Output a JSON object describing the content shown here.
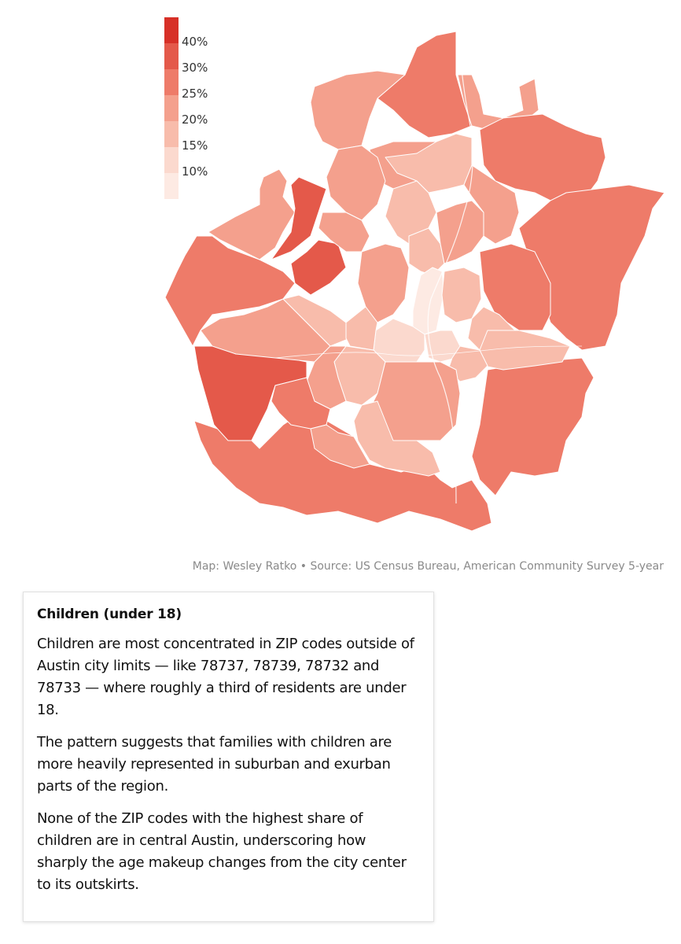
{
  "map": {
    "legend": {
      "labels": [
        "40%",
        "30%",
        "25%",
        "20%",
        "15%",
        "10%"
      ],
      "colors": [
        "#d73027",
        "#e4594a",
        "#ee7b69",
        "#f4a08d",
        "#f8bcab",
        "#fbd9ce",
        "#fdeae3"
      ]
    },
    "palette": {
      "c40": "#d73027",
      "c30": "#e4594a",
      "c25": "#ee7b69",
      "c20": "#f4a08d",
      "c15": "#f8bcab",
      "c10": "#fbd9ce",
      "c05": "#fdeae3",
      "border": "#ffffff"
    }
  },
  "credit": "Map: Wesley Ratko • Source: US Census Bureau, American Community Survey 5-year",
  "note": {
    "title": "Children (under 18)",
    "paragraphs": [
      "Children are most concentrated in ZIP codes outside of Austin city limits — like 78737, 78739, 78732 and 78733 — where roughly a third of residents are under 18.",
      "The pattern suggests that families with children are more heavily represented in suburban and exurban parts of the region.",
      "None of the ZIP codes with the highest share of children are in central Austin, underscoring how sharply the age makeup changes from the city center to its outskirts."
    ]
  }
}
